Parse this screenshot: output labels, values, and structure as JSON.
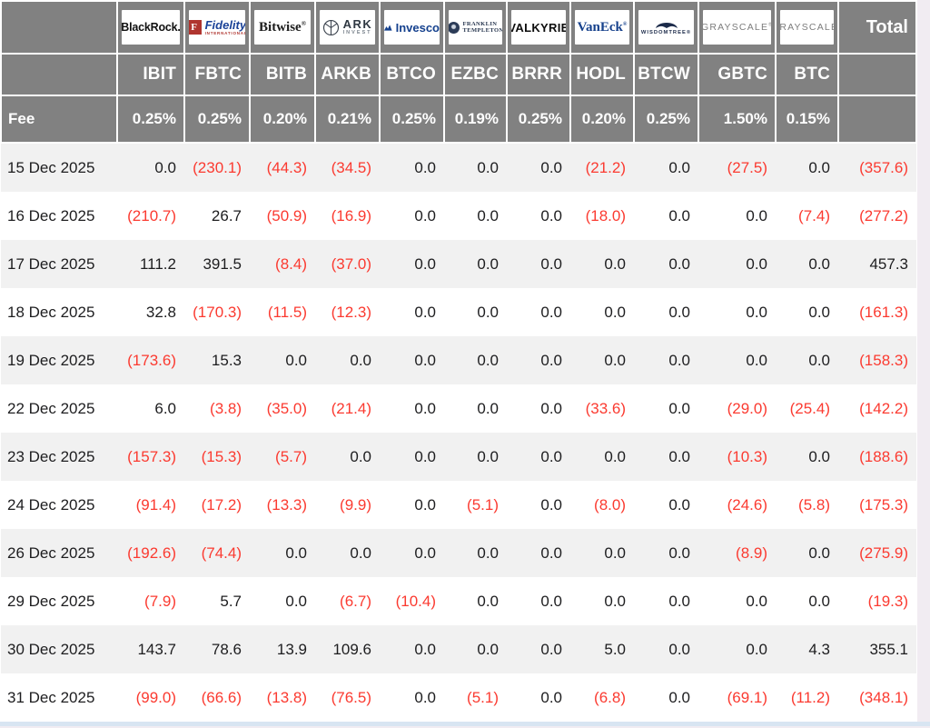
{
  "chart_data": {
    "type": "table",
    "fee_label": "Fee",
    "total_label": "Total",
    "columns": [
      {
        "id": "ibit",
        "ticker": "IBIT",
        "fee": "0.25%",
        "logo": {
          "style": "blackrock",
          "text": "BlackRock."
        }
      },
      {
        "id": "fbtc",
        "ticker": "FBTC",
        "fee": "0.25%",
        "logo": {
          "style": "fidelity",
          "text": "Fidelity",
          "sub": "INTERNATIONAL"
        }
      },
      {
        "id": "bitb",
        "ticker": "BITB",
        "fee": "0.20%",
        "logo": {
          "style": "bitwise",
          "text": "Bitwise"
        }
      },
      {
        "id": "arkb",
        "ticker": "ARKB",
        "fee": "0.21%",
        "logo": {
          "style": "ark",
          "text": "ARK",
          "sub": "INVEST"
        }
      },
      {
        "id": "btco",
        "ticker": "BTCO",
        "fee": "0.25%",
        "logo": {
          "style": "invesco",
          "text": "Invesco"
        }
      },
      {
        "id": "ezbc",
        "ticker": "EZBC",
        "fee": "0.19%",
        "logo": {
          "style": "franklin",
          "text": "FRANKLIN",
          "sub": "TEMPLETON"
        }
      },
      {
        "id": "brrr",
        "ticker": "BRRR",
        "fee": "0.25%",
        "logo": {
          "style": "valkyrie",
          "text": "VALKYRIE"
        }
      },
      {
        "id": "hodl",
        "ticker": "HODL",
        "fee": "0.20%",
        "logo": {
          "style": "vaneck",
          "text": "VanEck"
        }
      },
      {
        "id": "btcw",
        "ticker": "BTCW",
        "fee": "0.25%",
        "logo": {
          "style": "wisdomtree",
          "text": "WISDOMTREE"
        }
      },
      {
        "id": "gbtc",
        "ticker": "GBTC",
        "fee": "1.50%",
        "logo": {
          "style": "grayscale",
          "text": "GRAYSCALE"
        }
      },
      {
        "id": "btc",
        "ticker": "BTC",
        "fee": "0.15%",
        "logo": {
          "style": "grayscale",
          "text": "GRAYSCALE"
        }
      }
    ],
    "rows": [
      {
        "date": "15 Dec 2025",
        "values": [
          0.0,
          -230.1,
          -44.3,
          -34.5,
          0.0,
          0.0,
          0.0,
          -21.2,
          0.0,
          -27.5,
          0.0
        ],
        "total": -357.6
      },
      {
        "date": "16 Dec 2025",
        "values": [
          -210.7,
          26.7,
          -50.9,
          -16.9,
          0.0,
          0.0,
          0.0,
          -18.0,
          0.0,
          0.0,
          -7.4
        ],
        "total": -277.2
      },
      {
        "date": "17 Dec 2025",
        "values": [
          111.2,
          391.5,
          -8.4,
          -37.0,
          0.0,
          0.0,
          0.0,
          0.0,
          0.0,
          0.0,
          0.0
        ],
        "total": 457.3
      },
      {
        "date": "18 Dec 2025",
        "values": [
          32.8,
          -170.3,
          -11.5,
          -12.3,
          0.0,
          0.0,
          0.0,
          0.0,
          0.0,
          0.0,
          0.0
        ],
        "total": -161.3
      },
      {
        "date": "19 Dec 2025",
        "values": [
          -173.6,
          15.3,
          0.0,
          0.0,
          0.0,
          0.0,
          0.0,
          0.0,
          0.0,
          0.0,
          0.0
        ],
        "total": -158.3
      },
      {
        "date": "22 Dec 2025",
        "values": [
          6.0,
          -3.8,
          -35.0,
          -21.4,
          0.0,
          0.0,
          0.0,
          -33.6,
          0.0,
          -29.0,
          -25.4
        ],
        "total": -142.2
      },
      {
        "date": "23 Dec 2025",
        "values": [
          -157.3,
          -15.3,
          -5.7,
          0.0,
          0.0,
          0.0,
          0.0,
          0.0,
          0.0,
          -10.3,
          0.0
        ],
        "total": -188.6
      },
      {
        "date": "24 Dec 2025",
        "values": [
          -91.4,
          -17.2,
          -13.3,
          -9.9,
          0.0,
          -5.1,
          0.0,
          -8.0,
          0.0,
          -24.6,
          -5.8
        ],
        "total": -175.3
      },
      {
        "date": "26 Dec 2025",
        "values": [
          -192.6,
          -74.4,
          0.0,
          0.0,
          0.0,
          0.0,
          0.0,
          0.0,
          0.0,
          -8.9,
          0.0
        ],
        "total": -275.9
      },
      {
        "date": "29 Dec 2025",
        "values": [
          -7.9,
          5.7,
          0.0,
          -6.7,
          -10.4,
          0.0,
          0.0,
          0.0,
          0.0,
          0.0,
          0.0
        ],
        "total": -19.3
      },
      {
        "date": "30 Dec 2025",
        "values": [
          143.7,
          78.6,
          13.9,
          109.6,
          0.0,
          0.0,
          0.0,
          5.0,
          0.0,
          0.0,
          4.3
        ],
        "total": 355.1
      },
      {
        "date": "31 Dec 2025",
        "values": [
          -99.0,
          -66.6,
          -13.8,
          -76.5,
          0.0,
          -5.1,
          0.0,
          -6.8,
          0.0,
          -69.1,
          -11.2
        ],
        "total": -348.1
      }
    ],
    "colors": {
      "header_bg": "#818181",
      "negative": "#fb3a30",
      "row_alt": "#f1f1f1",
      "page_right_bg": "#f1ecf2",
      "page_bottom_bg": "#d8e5f2"
    }
  }
}
